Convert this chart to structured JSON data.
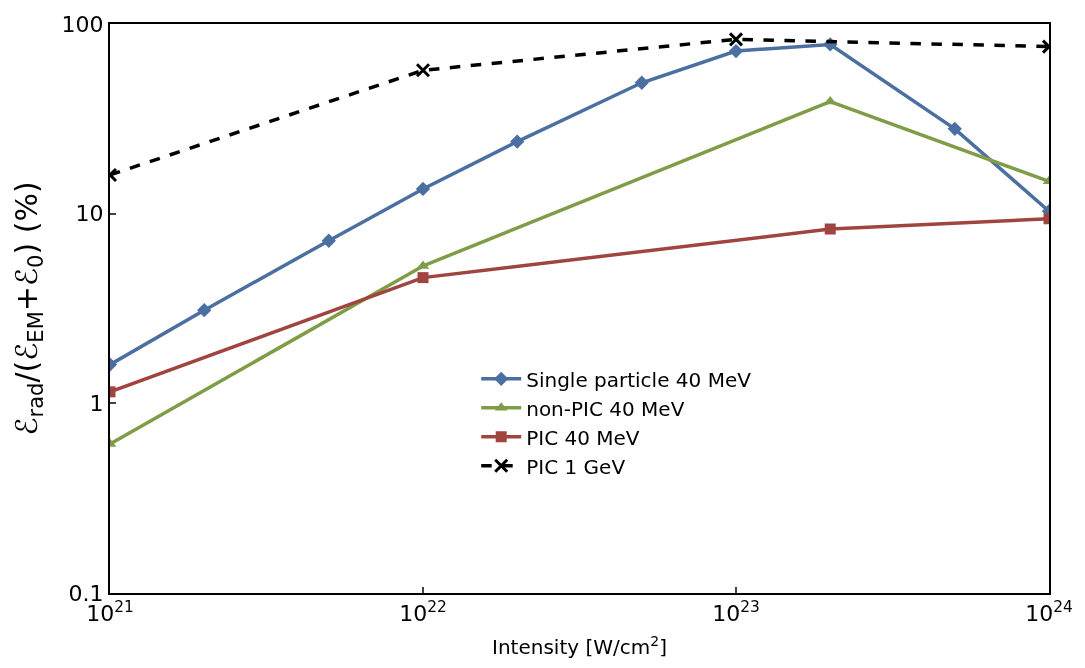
{
  "chart_data": {
    "type": "line",
    "xlabel": "Intensity [W/cm$^{2}$]",
    "ylabel": "ℰ$_{rad}$/(ℰ$_{EM}$+ℰ$_{0}$) (%)",
    "log": "xy",
    "xlim": [
      1e+21,
      1e+24
    ],
    "ylim": [
      0.1,
      100
    ],
    "xticks": [
      {
        "value": 1e+21,
        "label": "10$^{21}$"
      },
      {
        "value": 1e+22,
        "label": "10$^{22}$"
      },
      {
        "value": 1e+23,
        "label": "10$^{23}$"
      },
      {
        "value": 1e+24,
        "label": "10$^{24}$"
      }
    ],
    "yticks": [
      {
        "value": 0.1,
        "label": "0.1"
      },
      1,
      10,
      100
    ],
    "legend": "center",
    "series": [
      {
        "name": "Single particle 40 MeV",
        "color": "#4a6fa0",
        "marker": "diamond",
        "line_style": "solid",
        "x": [
          1e+21,
          2e+21,
          5e+21,
          1e+22,
          2e+22,
          5e+22,
          1e+23,
          2e+23,
          5e+23,
          1e+24
        ],
        "values": [
          1.6,
          3.1,
          7.2,
          13.5,
          24,
          49,
          72,
          78,
          28,
          10.3
        ]
      },
      {
        "name": "non-PIC 40 MeV",
        "color": "#7f9c47",
        "marker": "triangle",
        "line_style": "solid",
        "x": [
          1e+21,
          1e+22,
          2e+23,
          1e+24
        ],
        "values": [
          0.61,
          5.3,
          39,
          14.8
        ]
      },
      {
        "name": "PIC 40 MeV",
        "color": "#a04440",
        "marker": "square",
        "line_style": "solid",
        "x": [
          1e+21,
          1e+22,
          2e+23,
          1e+24
        ],
        "values": [
          1.15,
          4.6,
          8.3,
          9.4
        ]
      },
      {
        "name": "PIC 1 GeV",
        "color": "#000000",
        "marker": "cross",
        "line_style": "dashed",
        "x": [
          1e+21,
          1e+22,
          1e+23,
          1e+24
        ],
        "values": [
          16,
          57,
          83,
          76
        ]
      }
    ]
  }
}
